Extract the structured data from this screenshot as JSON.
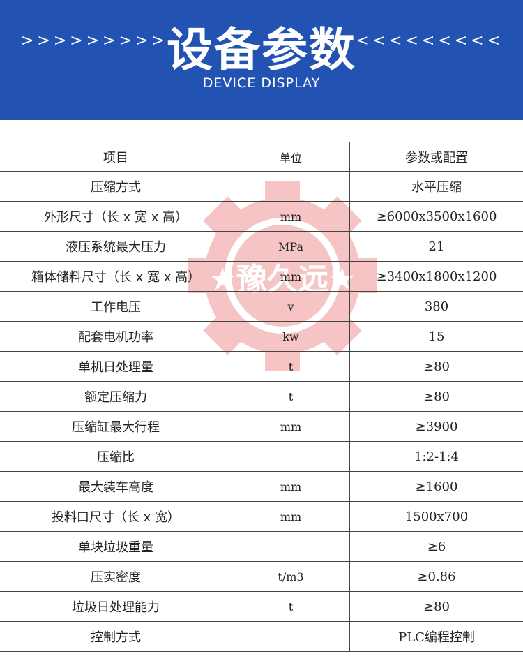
{
  "banner": {
    "title": "设备参数",
    "subtitle": "DEVICE DISPLAY",
    "left_arrows": ">>>>>>>>>",
    "right_arrows": "<<<<<<<<<",
    "color": "#2353b2"
  },
  "watermark": {
    "text": "★豫久远★",
    "color": "#e03030"
  },
  "table": {
    "headers": [
      "项目",
      "单位",
      "参数或配置"
    ],
    "rows": [
      [
        "压缩方式",
        "",
        "水平压缩"
      ],
      [
        "外形尺寸（长 x 宽 x 高）",
        "mm",
        "≥6000x3500x1600"
      ],
      [
        "液压系统最大压力",
        "MPa",
        "21"
      ],
      [
        "箱体储料尺寸（长 x 宽 x 高）",
        "mm",
        "≥3400x1800x1200"
      ],
      [
        "工作电压",
        "v",
        "380"
      ],
      [
        "配套电机功率",
        "kw",
        "15"
      ],
      [
        "单机日处理量",
        "t",
        "≥80"
      ],
      [
        "额定压缩力",
        "t",
        "≥80"
      ],
      [
        "压缩缸最大行程",
        "mm",
        "≥3900"
      ],
      [
        "压缩比",
        "",
        "1:2-1:4"
      ],
      [
        "最大装车高度",
        "mm",
        "≥1600"
      ],
      [
        "投料口尺寸（长 x 宽）",
        "mm",
        "1500x700"
      ],
      [
        "单块垃圾重量",
        "",
        "≥6"
      ],
      [
        "压实密度",
        "t/m3",
        "≥0.86"
      ],
      [
        "垃圾日处理能力",
        "t",
        "≥80"
      ],
      [
        "控制方式",
        "",
        "PLC编程控制"
      ]
    ]
  }
}
